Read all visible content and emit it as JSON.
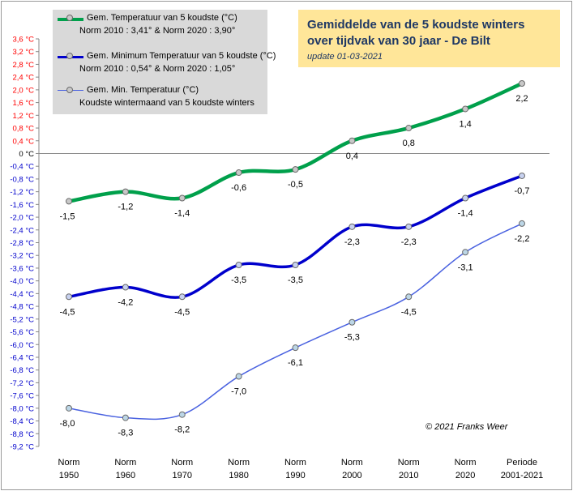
{
  "chart_data": {
    "type": "line",
    "title": "Gemiddelde van de 5 koudste winters",
    "subtitle": "over tijdvak van 30 jaar - De Bilt",
    "update_text": "update  01-03-2021",
    "credit": "© 2021 Franks Weer",
    "unit": "°C",
    "categories": [
      [
        "Norm",
        "1950"
      ],
      [
        "Norm",
        "1960"
      ],
      [
        "Norm",
        "1970"
      ],
      [
        "Norm",
        "1980"
      ],
      [
        "Norm",
        "1990"
      ],
      [
        "Norm",
        "2000"
      ],
      [
        "Norm",
        "2010"
      ],
      [
        "Norm",
        "2020"
      ],
      [
        "Periode",
        "2001-2021"
      ]
    ],
    "ylim": [
      -9.2,
      3.6
    ],
    "ytick_step": 0.4,
    "grid": false,
    "series": [
      {
        "name": "Gem.  Temperatuur van 5 koudste  (°C)",
        "note": "Norm 2010 :  3,41°  &  Norm 2020 : 3,90°",
        "color": "#00a04b",
        "values": [
          -1.5,
          -1.2,
          -1.4,
          -0.6,
          -0.5,
          0.4,
          0.8,
          1.4,
          2.2
        ],
        "labels": [
          "-1,5",
          "-1,2",
          "-1,4",
          "-0,6",
          "-0,5",
          "0,4",
          "0,8",
          "1,4",
          "2,2"
        ]
      },
      {
        "name": "Gem.  Minimum Temperatuur van 5 koudste  (°C)",
        "note": "Norm 2010 : 0,54°  &  Norm 2020 : 1,05°",
        "color": "#0000cc",
        "values": [
          -4.5,
          -4.2,
          -4.5,
          -3.5,
          -3.5,
          -2.3,
          -2.3,
          -1.4,
          -0.7
        ],
        "labels": [
          "-4,5",
          "-4,2",
          "-4,5",
          "-3,5",
          "-3,5",
          "-2,3",
          "-2,3",
          "-1,4",
          "-0,7"
        ]
      },
      {
        "name": "Gem.  Min. Temperatuur  (°C)",
        "note": "Koudste wintermaand van 5 koudste winters",
        "color": "#4a62e0",
        "values": [
          -8.0,
          -8.3,
          -8.2,
          -7.0,
          -6.1,
          -5.3,
          -4.5,
          -3.1,
          -2.2
        ],
        "labels": [
          "-8,0",
          "-8,3",
          "-8,2",
          "-7,0",
          "-6,1",
          "-5,3",
          "-4,5",
          "-3,1",
          "-2,2"
        ]
      }
    ]
  }
}
